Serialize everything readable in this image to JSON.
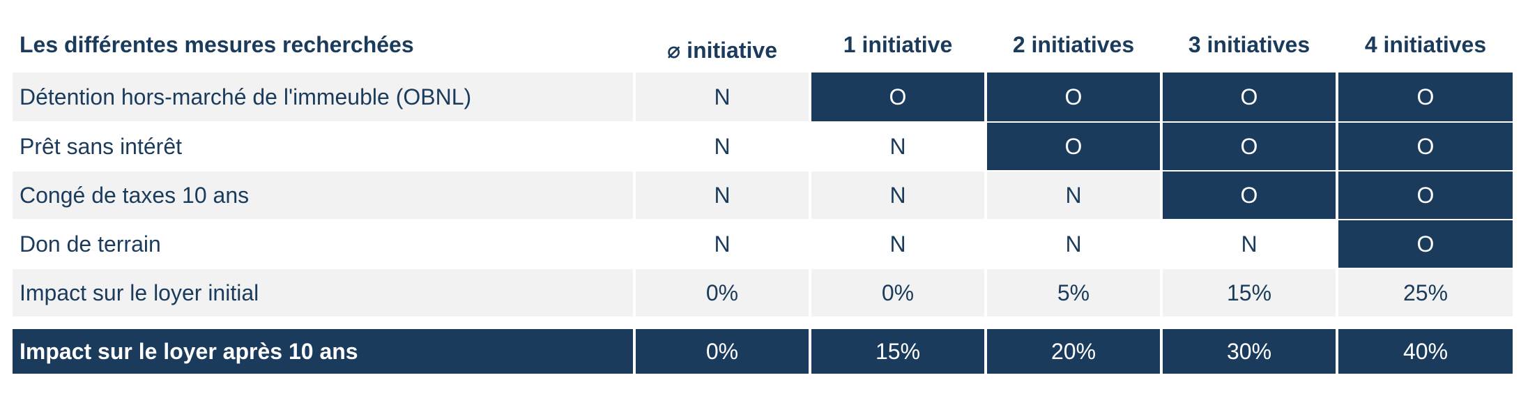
{
  "table": {
    "header": {
      "label": "Les différentes mesures recherchées",
      "columns": [
        "⌀ initiative",
        "1 initiative",
        "2 initiatives",
        "3 initiatives",
        "4 initiatives"
      ]
    },
    "rows": [
      {
        "label": "Détention hors-marché de l'immeuble (OBNL)",
        "values": [
          "N",
          "O",
          "O",
          "O",
          "O"
        ]
      },
      {
        "label": "Prêt sans intérêt",
        "values": [
          "N",
          "N",
          "O",
          "O",
          "O"
        ]
      },
      {
        "label": "Congé de taxes 10 ans",
        "values": [
          "N",
          "N",
          "N",
          "O",
          "O"
        ]
      },
      {
        "label": "Don de terrain",
        "values": [
          "N",
          "N",
          "N",
          "N",
          "O"
        ]
      },
      {
        "label": "Impact sur le loyer initial",
        "values": [
          "0%",
          "0%",
          "5%",
          "15%",
          "25%"
        ]
      }
    ],
    "footer": {
      "label": "Impact sur le loyer après 10 ans",
      "values": [
        "0%",
        "15%",
        "20%",
        "30%",
        "40%"
      ]
    }
  },
  "colors": {
    "navy": "#1a3b5c",
    "light_gray": "#f2f2f2",
    "white": "#ffffff"
  }
}
